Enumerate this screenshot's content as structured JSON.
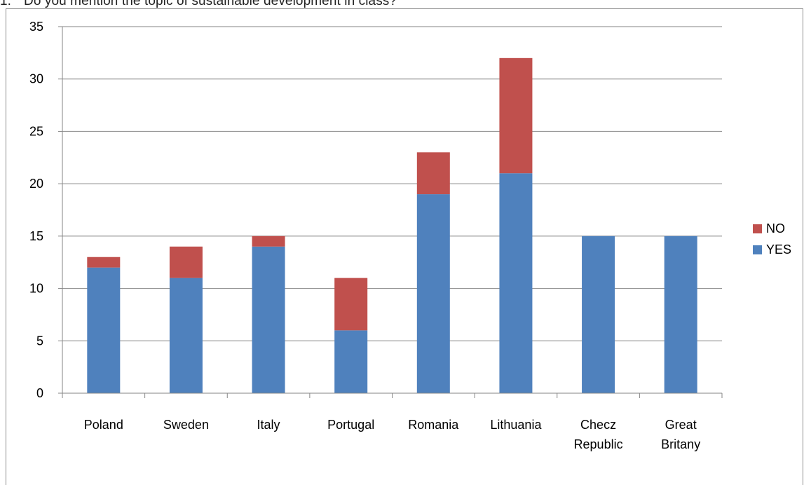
{
  "question": {
    "number": "1.",
    "text": "Do you mention the topic of sustainable development in class?"
  },
  "colors": {
    "yes": "#4f81bd",
    "no": "#c0504d",
    "grid": "#868686",
    "axis": "#868686"
  },
  "chart_data": {
    "type": "bar",
    "stacked": true,
    "title": "",
    "xlabel": "",
    "ylabel": "",
    "ylim": [
      0,
      35
    ],
    "yticks": [
      0,
      5,
      10,
      15,
      20,
      25,
      30,
      35
    ],
    "grid": true,
    "legend_position": "right",
    "categories": [
      [
        "Poland"
      ],
      [
        "Sweden"
      ],
      [
        "Italy"
      ],
      [
        "Portugal"
      ],
      [
        "Romania"
      ],
      [
        "Lithuania"
      ],
      [
        "Checz",
        "Republic"
      ],
      [
        "Great",
        "Britany"
      ]
    ],
    "series": [
      {
        "name": "YES",
        "values": [
          12,
          11,
          14,
          6,
          19,
          21,
          15,
          15
        ]
      },
      {
        "name": "NO",
        "values": [
          1,
          3,
          1,
          5,
          4,
          11,
          0,
          0
        ]
      }
    ],
    "legend_order": [
      "NO",
      "YES"
    ]
  }
}
